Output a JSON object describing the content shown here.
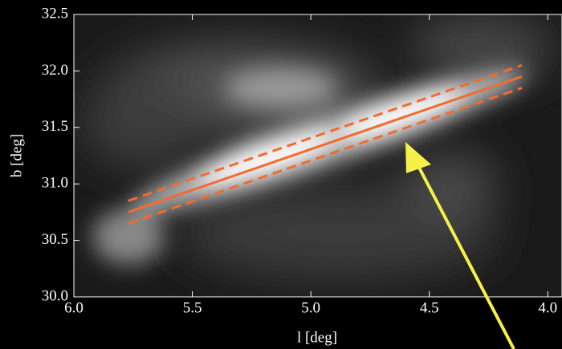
{
  "chart_data": {
    "type": "line",
    "x_label": "l [deg]",
    "y_label": "b [deg]",
    "x": [
      5.77,
      4.11
    ],
    "series": [
      {
        "color": "#f26b2f",
        "linestyle": "solid",
        "values": [
          30.75,
          31.95
        ]
      },
      {
        "color": "#f26b2f",
        "linestyle": "dashed",
        "values": [
          30.85,
          32.05
        ]
      },
      {
        "color": "#f26b2f",
        "linestyle": "dashed",
        "values": [
          30.65,
          31.85
        ]
      }
    ],
    "xlim": [
      6.0,
      3.94
    ],
    "ylim": [
      30.0,
      32.5
    ],
    "xticks": [
      {
        "value": 6.0,
        "label": "6.0"
      },
      5.5,
      {
        "value": 5.0,
        "label": "5.0"
      },
      4.5,
      {
        "value": 4.0,
        "label": "4.0"
      }
    ],
    "yticks": [
      {
        "value": 30.0,
        "label": "30.0"
      },
      30.5,
      {
        "value": 31.0,
        "label": "31.0"
      },
      31.5,
      {
        "value": 32.0,
        "label": "32.0"
      },
      32.5
    ]
  }
}
